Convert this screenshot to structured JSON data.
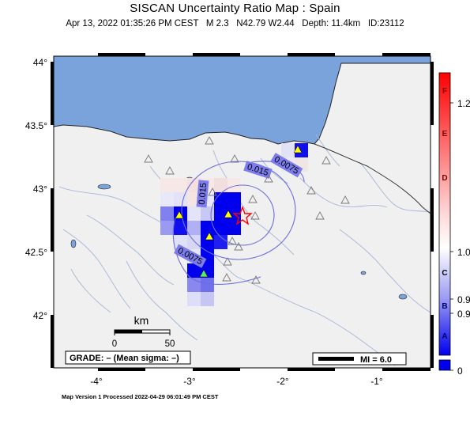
{
  "header": {
    "title": "SISCAN Uncertainty Ratio Map : Spain",
    "subtitle": "Apr 13, 2022 01:35:26 PM CEST   M 2.3   N42.79 W2.44   Depth: 11.4km   ID:23112"
  },
  "map": {
    "lon_range": [
      -4.45,
      -0.5
    ],
    "lat_range": [
      41.45,
      44.1
    ],
    "x_ticks": [
      "-4°",
      "-3°",
      "-2°",
      "-1°"
    ],
    "y_ticks": [
      "44°",
      "43.5°",
      "43°",
      "42.5°",
      "42°"
    ],
    "epicenter": {
      "lat": 42.79,
      "lon": -2.44
    },
    "contour_labels": [
      "0.015",
      "0.015",
      "0.0075",
      "0.0075"
    ],
    "colors": {
      "sea": "#7ba3db",
      "land": "#f0f0f0",
      "grid_high": "#0000ee",
      "epicenter": "#ff0000"
    },
    "stations_active_color": "#ffff00",
    "stations_inactive": "gray-triangle"
  },
  "scale_bar": {
    "label": "km",
    "ticks": [
      "0",
      "50"
    ]
  },
  "grade_box": {
    "text": "GRADE: – (Mean sigma: –)"
  },
  "mi_box": {
    "text": "MI = 6.0"
  },
  "colorbar": {
    "letters": [
      "F",
      "E",
      "D",
      "C",
      "B",
      "A"
    ],
    "values": [
      "1.2",
      "1.0",
      "0.9",
      "0.9",
      "0"
    ],
    "colors": {
      "top": "#ff0000",
      "mid": "#ffffff",
      "bottom": "#0000ee"
    }
  },
  "footer": {
    "text": "Map Version 1 Processed 2022-04-29 06:01:49 PM CEST"
  }
}
